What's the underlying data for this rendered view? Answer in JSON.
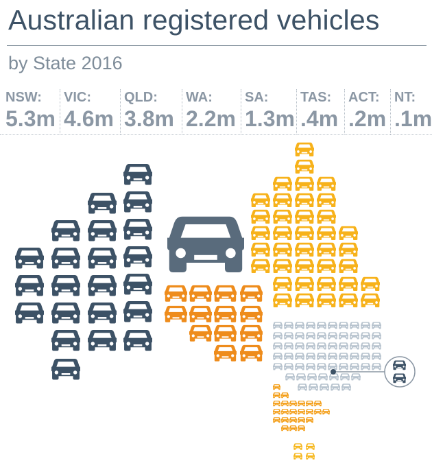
{
  "title": "Australian registered vehicles",
  "subtitle": "by State 2016",
  "colors": {
    "title": "#3d5266",
    "muted": "#8b97a4",
    "nsw": "#3d5266",
    "wa": "#596b7c",
    "wa_window": "#ffffff",
    "orange": "#f39c12",
    "yellow": "#f6b71c",
    "vic": "#f6b71c",
    "sa": "#ee8c1c",
    "qld": "#f7b21b",
    "light": "#b7c3ce",
    "tas": "#f6b71c",
    "act": "#3d5266"
  },
  "stats": [
    {
      "label": "NSW:",
      "value": "5.3m",
      "highlight": false
    },
    {
      "label": "VIC:",
      "value": "4.6m",
      "highlight": false
    },
    {
      "label": "QLD:",
      "value": "3.8m",
      "highlight": false
    },
    {
      "label": "WA:",
      "value": "2.2m",
      "highlight": true
    },
    {
      "label": "SA:",
      "value": "1.3m",
      "highlight": false
    },
    {
      "label": "TAS:",
      "value": ".4m",
      "highlight": false
    },
    {
      "label": "ACT:",
      "value": ".2m",
      "highlight": false
    },
    {
      "label": "NT:",
      "value": ".1m",
      "highlight": false
    }
  ],
  "chart_data": {
    "type": "pictogram",
    "unit": "m",
    "categories": [
      "NSW",
      "VIC",
      "QLD",
      "WA",
      "SA",
      "TAS",
      "ACT",
      "NT"
    ],
    "values": [
      5.3,
      4.6,
      3.8,
      2.2,
      1.3,
      0.4,
      0.2,
      0.1
    ]
  }
}
